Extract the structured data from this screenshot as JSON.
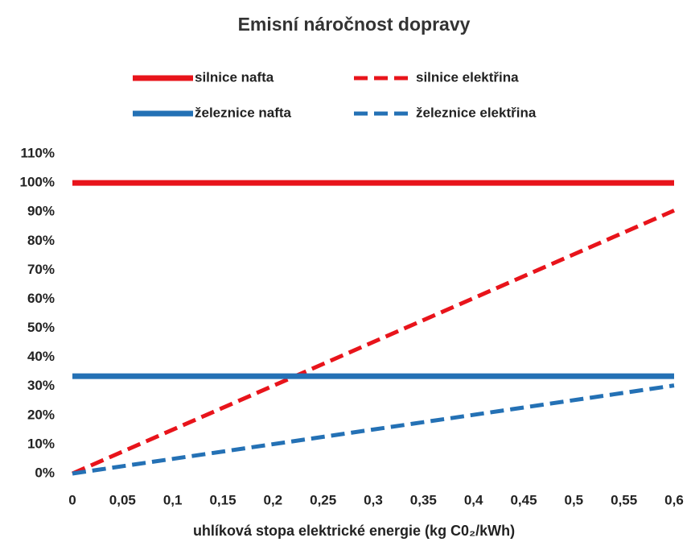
{
  "chart_data": {
    "type": "line",
    "title": "Emisní náročnost dopravy",
    "x_label": "uhlíková stopa elektrické energie (kg C0₂/kWh)",
    "x": [
      0,
      0.6
    ],
    "series": [
      {
        "name": "silnice nafta",
        "color": "#e8141b",
        "style": "solid",
        "values": [
          100,
          100
        ]
      },
      {
        "name": "silnice elektřina",
        "color": "#e8141b",
        "style": "dashed",
        "values": [
          0,
          90.5
        ]
      },
      {
        "name": "železnice nafta",
        "color": "#2471b5",
        "style": "solid",
        "values": [
          33.5,
          33.5
        ]
      },
      {
        "name": "železnice elektřina",
        "color": "#2471b5",
        "style": "dashed",
        "values": [
          0,
          30.3
        ]
      }
    ],
    "xlim": [
      0,
      0.6
    ],
    "xticks": [
      0,
      {
        "value": 0.05,
        "label": "0,05"
      },
      {
        "value": 0.1,
        "label": "0,1"
      },
      {
        "value": 0.15,
        "label": "0,15"
      },
      {
        "value": 0.2,
        "label": "0,2"
      },
      {
        "value": 0.25,
        "label": "0,25"
      },
      {
        "value": 0.3,
        "label": "0,3"
      },
      {
        "value": 0.35,
        "label": "0,35"
      },
      {
        "value": 0.4,
        "label": "0,4"
      },
      {
        "value": 0.45,
        "label": "0,45"
      },
      {
        "value": 0.5,
        "label": "0,5"
      },
      {
        "value": 0.55,
        "label": "0,55"
      },
      {
        "value": 0.6,
        "label": "0,6"
      }
    ],
    "ylim": [
      0,
      110
    ],
    "yticks": [
      {
        "value": 0,
        "label": "0%"
      },
      {
        "value": 10,
        "label": "10%"
      },
      {
        "value": 20,
        "label": "20%"
      },
      {
        "value": 30,
        "label": "30%"
      },
      {
        "value": 40,
        "label": "40%"
      },
      {
        "value": 50,
        "label": "50%"
      },
      {
        "value": 60,
        "label": "60%"
      },
      {
        "value": 70,
        "label": "70%"
      },
      {
        "value": 80,
        "label": "80%"
      },
      {
        "value": 90,
        "label": "90%"
      },
      {
        "value": 100,
        "label": "100%"
      },
      {
        "value": 110,
        "label": "110%"
      }
    ],
    "grid": false
  }
}
